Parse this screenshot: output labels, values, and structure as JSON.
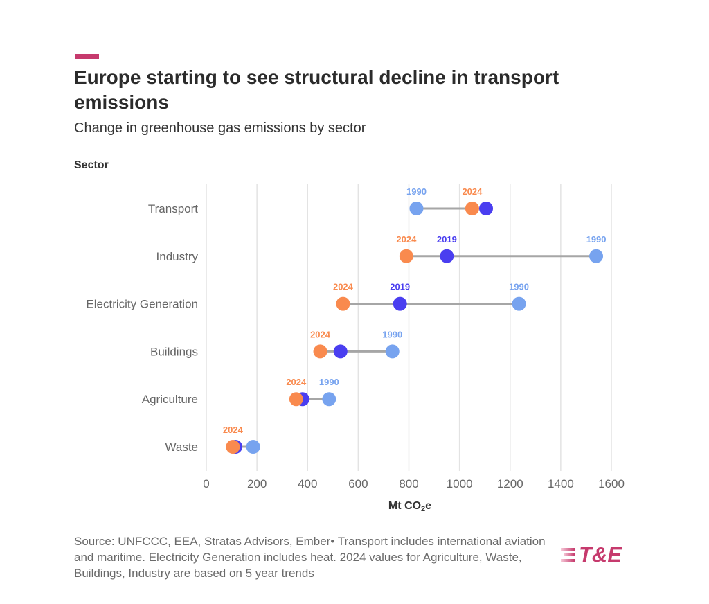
{
  "header": {
    "title": "Europe starting to see structural decline in transport emissions",
    "subtitle": "Change in greenhouse gas emissions by sector",
    "y_axis_title": "Sector"
  },
  "chart_data": {
    "type": "scatter",
    "subtype": "dumbbell",
    "xlabel_main": "Mt CO",
    "xlabel_sub": "2",
    "xlabel_suffix": "e",
    "xlim": [
      0,
      1600
    ],
    "xticks": [
      0,
      200,
      400,
      600,
      800,
      1000,
      1200,
      1400,
      1600
    ],
    "grid": true,
    "categories": [
      "Transport",
      "Industry",
      "Electricity Generation",
      "Buildings",
      "Agriculture",
      "Waste"
    ],
    "series": [
      {
        "key": "1990",
        "color": "#77a3ef",
        "values": [
          830,
          1540,
          1235,
          735,
          485,
          185
        ]
      },
      {
        "key": "2019",
        "color": "#4a3ef0",
        "values": [
          1105,
          950,
          765,
          530,
          380,
          115
        ]
      },
      {
        "key": "2024",
        "color": "#f98a4e",
        "values": [
          1050,
          790,
          540,
          450,
          355,
          105
        ]
      }
    ],
    "point_labels": [
      {
        "category": "Transport",
        "series": "1990",
        "text": "1990"
      },
      {
        "category": "Transport",
        "series": "2024",
        "text": "2024"
      },
      {
        "category": "Industry",
        "series": "2024",
        "text": "2024"
      },
      {
        "category": "Industry",
        "series": "2019",
        "text": "2019"
      },
      {
        "category": "Industry",
        "series": "1990",
        "text": "1990"
      },
      {
        "category": "Electricity Generation",
        "series": "2024",
        "text": "2024"
      },
      {
        "category": "Electricity Generation",
        "series": "2019",
        "text": "2019"
      },
      {
        "category": "Electricity Generation",
        "series": "1990",
        "text": "1990"
      },
      {
        "category": "Buildings",
        "series": "2024",
        "text": "2024"
      },
      {
        "category": "Buildings",
        "series": "1990",
        "text": "1990"
      },
      {
        "category": "Agriculture",
        "series": "2024",
        "text": "2024"
      },
      {
        "category": "Agriculture",
        "series": "1990",
        "text": "1990"
      },
      {
        "category": "Waste",
        "series": "2024",
        "text": "2024"
      }
    ],
    "colors": {
      "connector": "#a6a6a6",
      "gridline": "#e3e3e3",
      "tick_label": "#666666"
    }
  },
  "footer": {
    "source": "Source: UNFCCC, EEA, Stratas Advisors, Ember• Transport includes international aviation and maritime. Electricity Generation includes heat. 2024 values for Agriculture, Waste, Buildings, Industry are based on 5 year trends",
    "logo_text": "T&E"
  },
  "colors": {
    "accent": "#c63a6d",
    "brand": "#c63a6d"
  }
}
